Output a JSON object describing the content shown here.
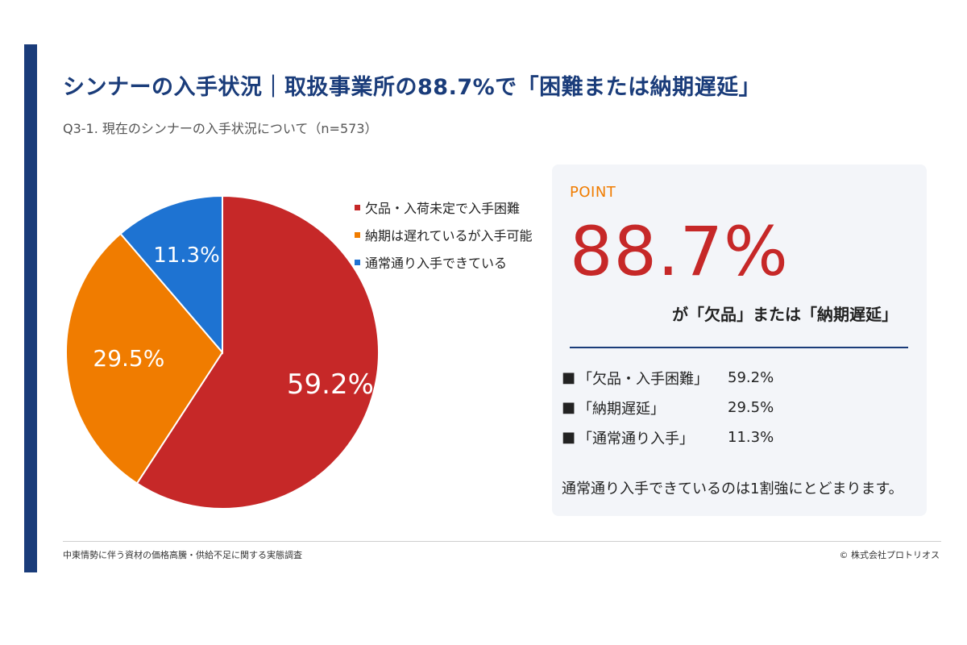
{
  "header": {
    "title": "シンナーの入手状況｜取扱事業所の88.7%で「困難または納期遅延」",
    "subtitle": "Q3-1. 現在のシンナーの入手状況について（n=573）"
  },
  "chart_data": {
    "type": "pie",
    "categories": [
      "欠品・入荷未定で入手困難",
      "納期は遅れているが入手可能",
      "通常通り入手できている"
    ],
    "values": [
      59.2,
      29.5,
      11.3
    ],
    "labels": [
      "59.2%",
      "29.5%",
      "11.3%"
    ],
    "colors": [
      "#c62828",
      "#f07c00",
      "#1e73d2"
    ],
    "legend_position": "right",
    "start": "top",
    "direction": "clockwise"
  },
  "point": {
    "tag": "POINT",
    "big_value": "88.7%",
    "caption": "が「欠品」または「納期遅延」",
    "breakdown": [
      {
        "mark": "■",
        "label": "「欠品・入手困難」",
        "value": "59.2%"
      },
      {
        "mark": "■",
        "label": "「納期遅延」",
        "value": "29.5%"
      },
      {
        "mark": "■",
        "label": "「通常通り入手」",
        "value": "11.3%"
      }
    ],
    "note": "通常通り入手できているのは1割強にとどまります。"
  },
  "footer": {
    "source": "中東情勢に伴う資材の価格高騰・供給不足に関する実態調査",
    "copyright": "© 株式会社プロトリオス"
  },
  "colors": {
    "brand_navy": "#1a3c7a",
    "accent_orange": "#f07c00",
    "accent_red": "#c62828"
  }
}
